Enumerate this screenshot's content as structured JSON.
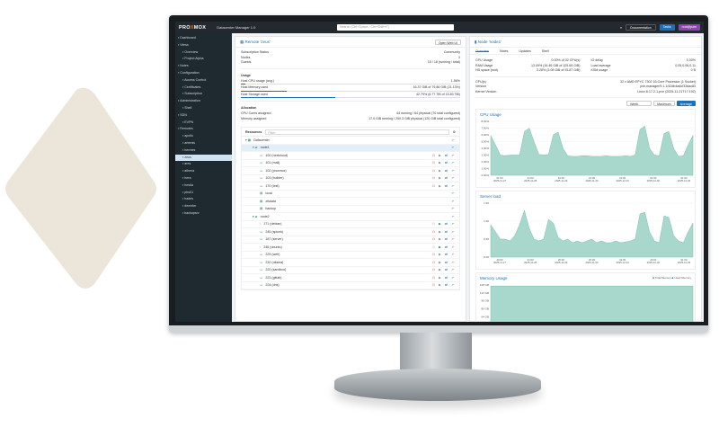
{
  "app": {
    "logo": "PROXMOX",
    "title": "Datacenter Manager 1.0",
    "search_placeholder": "Search (Ctrl+Space / Ctrl+Shift+F)",
    "documentation": "Documentation",
    "tasks": "Tasks",
    "user": "root@pam"
  },
  "colors": {
    "accent": "#1d6fb8",
    "sidebar": "#1f2a30",
    "chart_fill": "#a8d8cc",
    "brand_orange": "#e57000",
    "user_btn": "#8e44ad"
  },
  "sidebar": {
    "items": [
      {
        "label": "Dashboard",
        "icon": "dashboard-icon",
        "level": 0
      },
      {
        "label": "Views",
        "icon": "views-icon",
        "level": 0
      },
      {
        "label": "Overview",
        "icon": "overview-icon",
        "level": 1
      },
      {
        "label": "Project Alpha",
        "icon": "view-icon",
        "level": 1
      },
      {
        "label": "Notes",
        "icon": "notes-icon",
        "level": 0
      },
      {
        "label": "Configuration",
        "icon": "gear-icon",
        "level": 0
      },
      {
        "label": "Access Control",
        "icon": "key-icon",
        "level": 1
      },
      {
        "label": "Certificates",
        "icon": "certificate-icon",
        "level": 1
      },
      {
        "label": "Subscription",
        "icon": "support-icon",
        "level": 1
      },
      {
        "label": "Administration",
        "icon": "wrench-icon",
        "level": 0
      },
      {
        "label": "Shell",
        "icon": "terminal-icon",
        "level": 1
      },
      {
        "label": "SDN",
        "icon": "sdn-icon",
        "level": 0
      },
      {
        "label": "EVPN",
        "icon": "evpn-icon",
        "level": 1
      },
      {
        "label": "Remotes",
        "icon": "server-icon",
        "level": 0
      },
      {
        "label": "apollo",
        "icon": "server-icon",
        "level": 1
      },
      {
        "label": "artemis",
        "icon": "server-icon",
        "level": 1
      },
      {
        "label": "hermes",
        "icon": "server-icon",
        "level": 1
      },
      {
        "label": "zeus",
        "icon": "server-icon",
        "level": 1,
        "selected": true
      },
      {
        "label": "ares",
        "icon": "server-icon",
        "level": 1
      },
      {
        "label": "athena",
        "icon": "server-icon",
        "level": 1
      },
      {
        "label": "hera",
        "icon": "server-icon",
        "level": 1
      },
      {
        "label": "hestia",
        "icon": "server-icon",
        "level": 1
      },
      {
        "label": "pbs01",
        "icon": "server-icon",
        "level": 1
      },
      {
        "label": "hades",
        "icon": "server-icon",
        "level": 1
      },
      {
        "label": "demeter",
        "icon": "server-icon",
        "level": 1
      },
      {
        "label": "backupsrv",
        "icon": "server-icon",
        "level": 1
      }
    ]
  },
  "remote": {
    "title": "Remote 'zeus'",
    "open_web_ui": "Open Web UI",
    "info": [
      {
        "label": "Subscription Status",
        "value": "Community"
      },
      {
        "label": "Nodes",
        "value": "3"
      },
      {
        "label": "Guests",
        "value": "15 / 18 (running / total)"
      }
    ],
    "usage_title": "Usage",
    "usage": [
      {
        "label": "Host CPU usage (avg.)",
        "value": "1.56%",
        "fraction": 0.02
      },
      {
        "label": "Host Memory used",
        "value": "16.37 GiB of 79.86 GiB (21.13%)",
        "fraction": 0.21
      },
      {
        "label": "Host Storage used",
        "value": "42.79% (6.77 TiB of 15.83 TiB)",
        "fraction": 0.43
      }
    ],
    "allocation_title": "Allocation",
    "allocation": [
      {
        "label": "CPU Cores assigned",
        "value": "44 running / 64 physical (70 total configured)"
      },
      {
        "label": "Memory assigned",
        "value": "17.0 GiB running / 250.3 GiB physical (120 GiB total configured)"
      }
    ],
    "resources_title": "Resources",
    "filter_placeholder": "Filter",
    "tree": [
      {
        "label": "Datacenter",
        "level": 0,
        "type": "datacenter"
      },
      {
        "label": "node1",
        "level": 1,
        "type": "node",
        "selected": true
      },
      {
        "label": "100 (nextcloud)",
        "level": 2,
        "type": "vm",
        "actions": true
      },
      {
        "label": "101 (mail)",
        "level": 2,
        "type": "vm",
        "actions": true
      },
      {
        "label": "102 (proxmox)",
        "level": 2,
        "type": "vm",
        "actions": true
      },
      {
        "label": "103 (builder)",
        "level": 2,
        "type": "vm",
        "actions": true
      },
      {
        "label": "170 (test)",
        "level": 2,
        "type": "vm",
        "actions": true
      },
      {
        "label": "local",
        "level": 2,
        "type": "storage"
      },
      {
        "label": "zfsdata",
        "level": 2,
        "type": "storage"
      },
      {
        "label": "backup",
        "level": 2,
        "type": "storage"
      },
      {
        "label": "node2",
        "level": 1,
        "type": "node"
      },
      {
        "label": "171 (debian)",
        "level": 2,
        "type": "ct",
        "actions": true,
        "running": true
      },
      {
        "label": "245 (splunk)",
        "level": 2,
        "type": "vm",
        "actions": true
      },
      {
        "label": "187 (server)",
        "level": 2,
        "type": "vm",
        "actions": true
      },
      {
        "label": "246 (ubuntu)",
        "level": 2,
        "type": "ct",
        "actions": true,
        "running": true
      },
      {
        "label": "229 (web)",
        "level": 2,
        "type": "vm",
        "actions": true
      },
      {
        "label": "232 (ollama)",
        "level": 2,
        "type": "vm",
        "actions": true
      },
      {
        "label": "220 (sandbox)",
        "level": 2,
        "type": "vm",
        "actions": true
      },
      {
        "label": "223 (gitlab)",
        "level": 2,
        "type": "vm",
        "actions": true
      },
      {
        "label": "224 (dns)",
        "level": 2,
        "type": "vm",
        "actions": true
      }
    ]
  },
  "node": {
    "title": "Node 'node1'",
    "tabs": [
      "Overview",
      "Notes",
      "Updates",
      "Shell"
    ],
    "stats_left": [
      {
        "label": "CPU Usage",
        "value": "0.00% of 32 CPU(s)"
      },
      {
        "label": "RAM Usage",
        "value": "13.09% (16.46 GiB of 125.69 GiB)"
      },
      {
        "label": "HD space (root)",
        "value": "3.28% (3.08 GiB of 93.87 GiB)"
      }
    ],
    "stats_right": [
      {
        "label": "IO delay",
        "value": "0.00%"
      },
      {
        "label": "Load average",
        "value": "0.05,0.06,0.11"
      },
      {
        "label": "KSM usage",
        "value": "0 B"
      }
    ],
    "info": [
      {
        "label": "CPU(s)",
        "value": "32 x AMD EPYC 7302 16-Core Processor (1 Socket)"
      },
      {
        "label": "Version",
        "value": "pve-manager/9.1.1/42db4a6cf33dac83"
      },
      {
        "label": "Kernel Version",
        "value": "Linux 6.17.2-1-pve (2025-11-21T17:19Z)"
      }
    ],
    "timeframe": "Week",
    "mode_max": "Maximum",
    "mode_avg": "Average"
  },
  "chart_data": [
    {
      "type": "area",
      "title": "CPU Usage",
      "yticks": [
        "8.00%",
        "7.00%",
        "6.00%",
        "5.00%",
        "4.00%",
        "3.00%",
        "2.00%",
        "1.00%",
        "0.00%"
      ],
      "ylim": [
        0,
        8
      ],
      "xticks": [
        "01:00\n2025-11-27",
        "01:00\n2025-11-28",
        "01:00\n2025-11-29",
        "01:00\n2025-11-30",
        "01:00\n2025-12-01",
        "01:00\n2025-12-02",
        "01:00\n2025-12-03"
      ],
      "values": [
        5.9,
        4.5,
        3,
        2.9,
        3,
        3,
        3,
        6.5,
        7,
        5,
        3.1,
        3,
        3.1,
        6,
        6.4,
        4,
        2.9,
        2.8,
        2.8,
        2.9,
        2.9,
        2.8,
        2.8,
        2.8,
        2.9,
        2.8,
        2.8,
        2.8,
        2.9,
        2.8,
        3,
        6.8,
        7.3,
        4,
        3,
        2.9,
        6.2,
        6.5,
        4,
        2.8,
        2.9,
        4.5,
        5.9
      ]
    },
    {
      "type": "area",
      "title": "Server load",
      "yticks": [
        "1.50",
        "1.00",
        "0.50",
        "0.00"
      ],
      "ylim": [
        0,
        1.5
      ],
      "xticks": [
        "20:00\n2025-11-27",
        "01:00\n2025-11-28",
        "20:00\n2025-11-29",
        "20:00\n2025-11-30",
        "01:00\n2025-12-01",
        "20:00\n2025-12-02",
        "01:00\n2025-12-03"
      ],
      "values": [
        0.9,
        0.7,
        0.5,
        0.5,
        0.45,
        0.6,
        0.9,
        1.3,
        0.8,
        0.5,
        0.45,
        0.5,
        1.05,
        0.95,
        0.55,
        0.45,
        0.5,
        0.4,
        0.45,
        0.4,
        0.45,
        0.5,
        0.4,
        0.45,
        0.4,
        0.4,
        0.45,
        0.4,
        0.42,
        0.45,
        0.5,
        1.2,
        1.25,
        0.7,
        0.45,
        0.4,
        1.15,
        1.1,
        0.6,
        0.45,
        0.4,
        0.7,
        0.95
      ]
    },
    {
      "type": "area",
      "title": "Memory Usage",
      "legend": [
        "Total Memory",
        "Used Memory"
      ],
      "legend_position": "top-right",
      "yticks": [
        "128 GB",
        "112 GB",
        "96 GB",
        "80 GB",
        "64 GB",
        "48 GB",
        "32 GB"
      ],
      "ylim": [
        0,
        128
      ],
      "values": [
        125,
        125
      ]
    }
  ]
}
